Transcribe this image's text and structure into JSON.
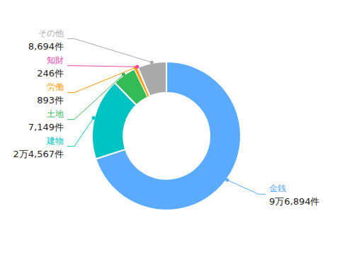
{
  "chart_data": {
    "type": "pie",
    "categories": [
      "金銭",
      "建物",
      "土地",
      "労働",
      "知財",
      "その他"
    ],
    "values": [
      96894,
      24567,
      7149,
      893,
      246,
      8694
    ],
    "value_labels": [
      "9万6,894件",
      "2万4,567件",
      "7,149件",
      "893件",
      "246件",
      "8,694件"
    ],
    "colors": [
      "#5aabff",
      "#00c4c4",
      "#33bb55",
      "#ff9900",
      "#ee44aa",
      "#aaaaaa"
    ],
    "data_labels": true
  }
}
